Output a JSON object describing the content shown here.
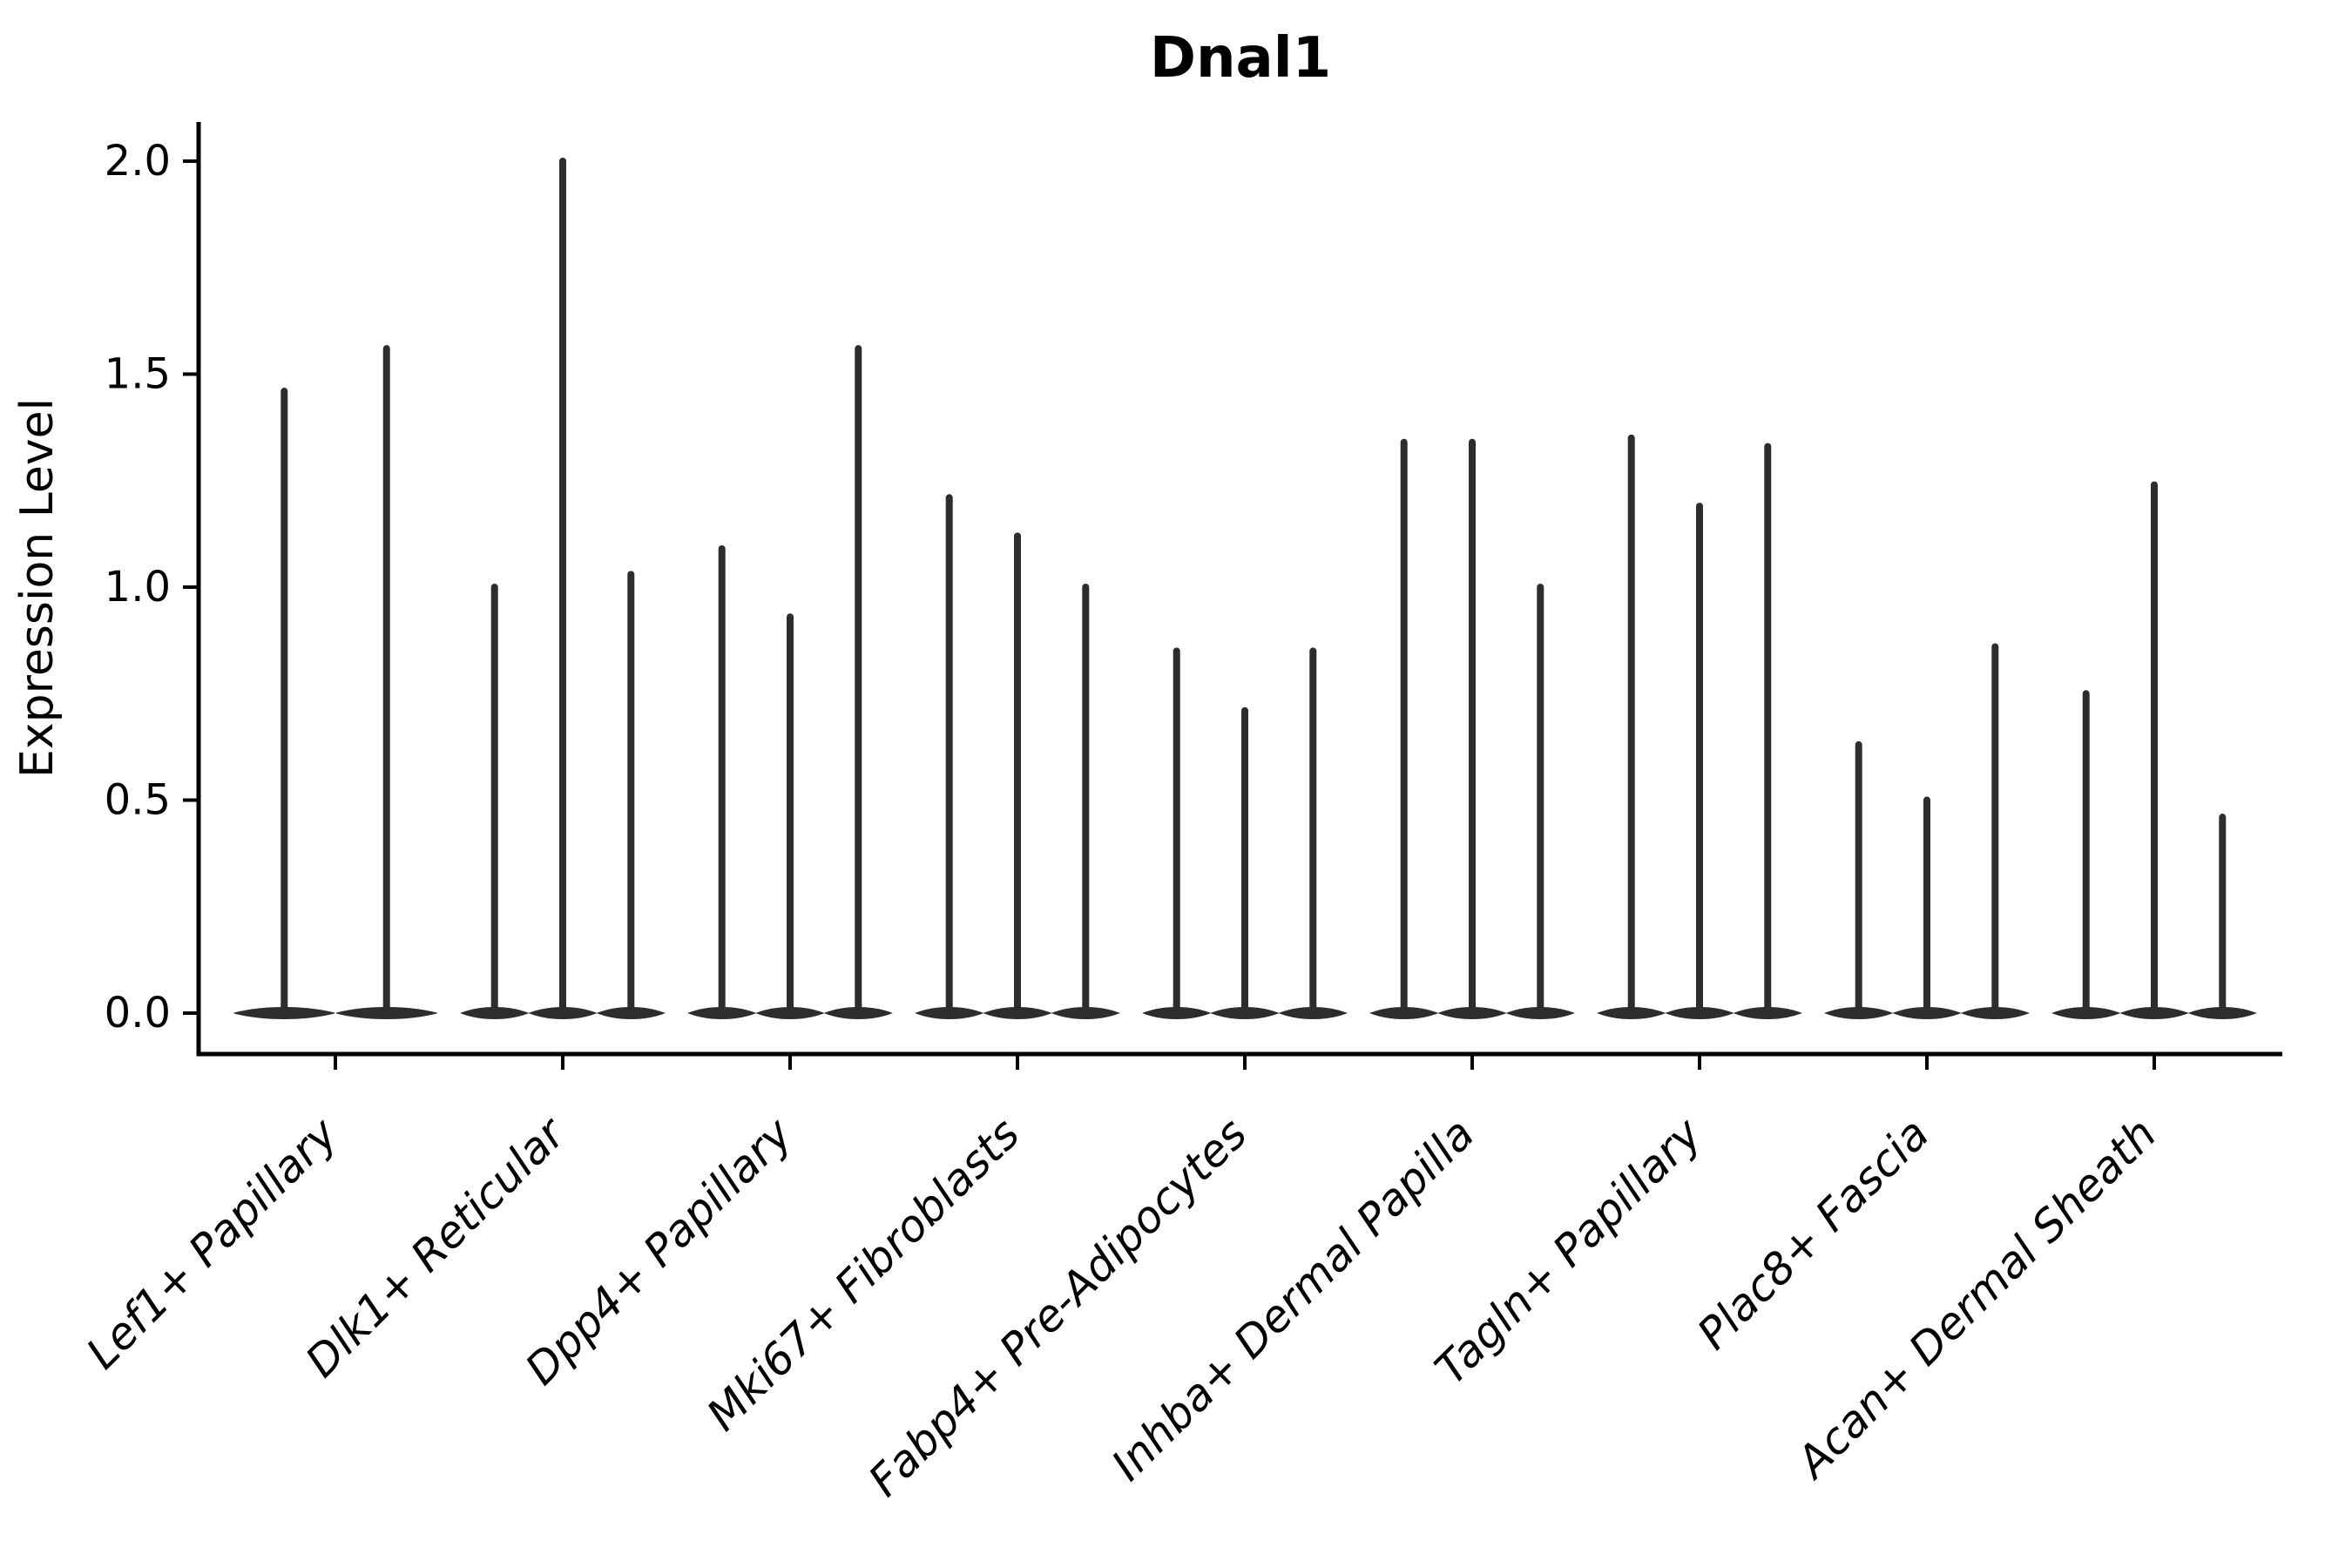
{
  "figure": {
    "title": "Dnal1",
    "y_axis_label": "Expression Level"
  },
  "chart_data": {
    "type": "violin",
    "title": "Dnal1",
    "xlabel": "",
    "ylabel": "Expression Level",
    "ylim": [
      -0.1,
      2.09
    ],
    "yticks": [
      0.0,
      0.5,
      1.0,
      1.5,
      2.0
    ],
    "ytick_labels": [
      "0.0",
      "0.5",
      "1.0",
      "1.5",
      "2.0"
    ],
    "grid": false,
    "legend": "none",
    "violin_color": "#2d2d2d",
    "description": "Grouped single-cell expression violin plot for gene Dnal1. Each category holds 2-3 very narrow violins whose mass sits at 0 (flat lens at baseline) with a thin vertical spike reaching the maximum expression value.",
    "categories": [
      "Lef1+ Papillary",
      "Dlk1+ Reticular",
      "Dpp4+ Papillary",
      "Mki67+ Fibroblasts",
      "Fabp4+ Pre-Adipocytes",
      "Inhba+ Dermal Papilla",
      "Tagln+ Papillary",
      "Plac8+ Fascia",
      "Acan+ Dermal Sheath"
    ],
    "groups": [
      {
        "category": "Lef1+ Papillary",
        "violin_max": [
          1.46,
          1.56
        ]
      },
      {
        "category": "Dlk1+ Reticular",
        "violin_max": [
          1.0,
          2.0,
          1.03
        ]
      },
      {
        "category": "Dpp4+ Papillary",
        "violin_max": [
          1.09,
          0.93,
          1.56
        ]
      },
      {
        "category": "Mki67+ Fibroblasts",
        "violin_max": [
          1.21,
          1.12,
          1.0
        ]
      },
      {
        "category": "Fabp4+ Pre-Adipocytes",
        "violin_max": [
          0.85,
          0.71,
          0.85
        ]
      },
      {
        "category": "Inhba+ Dermal Papilla",
        "violin_max": [
          1.34,
          1.34,
          1.0
        ]
      },
      {
        "category": "Tagln+ Papillary",
        "violin_max": [
          1.35,
          1.19,
          1.33
        ]
      },
      {
        "category": "Plac8+ Fascia",
        "violin_max": [
          0.63,
          0.5,
          0.86
        ]
      },
      {
        "category": "Acan+ Dermal Sheath",
        "violin_max": [
          0.75,
          1.24,
          0.46
        ]
      }
    ]
  }
}
